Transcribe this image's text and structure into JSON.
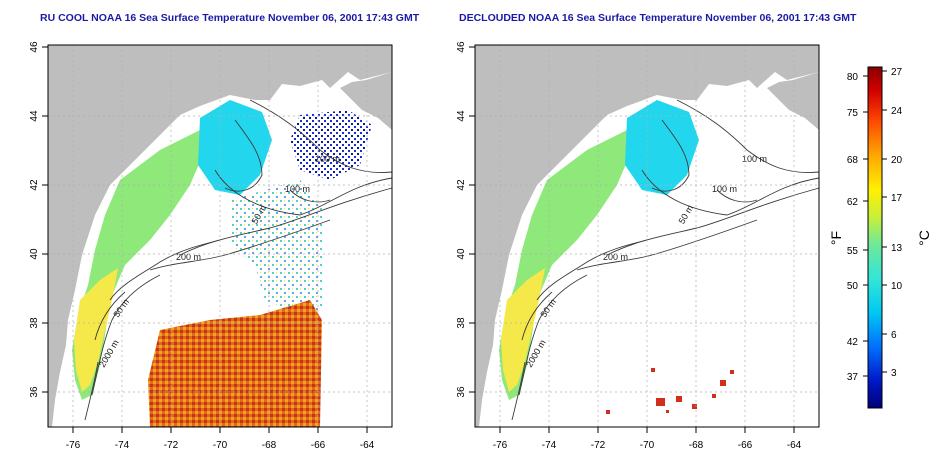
{
  "titles": {
    "left": "RU COOL NOAA 16 Sea Surface Temperature November 06, 2001 17:43 GMT",
    "right": "DECLOUDED NOAA 16 Sea Surface Temperature November 06, 2001 17:43 GMT"
  },
  "axes": {
    "lat_ticks": [
      "46",
      "44",
      "42",
      "40",
      "38",
      "36"
    ],
    "lon_ticks": [
      "-76",
      "-74",
      "-72",
      "-70",
      "-68",
      "-66",
      "-64"
    ]
  },
  "contour_labels": {
    "left": [
      "100 m",
      "100 m",
      "50 m",
      "200 m",
      "50 m",
      "2000 m"
    ],
    "right": [
      "100 m",
      "100 m",
      "50 m",
      "200 m",
      "50 m",
      "2000 m"
    ]
  },
  "colorbar": {
    "f_ticks": [
      "80",
      "75",
      "68",
      "62",
      "55",
      "50",
      "42",
      "37"
    ],
    "c_ticks": [
      "27",
      "24",
      "20",
      "17",
      "13",
      "10",
      "6",
      "3"
    ],
    "f_unit": "°F",
    "c_unit": "°C"
  },
  "colors": {
    "land": "#bebebe",
    "title": "#1a1aa6",
    "contour": "#3a3a3a"
  }
}
